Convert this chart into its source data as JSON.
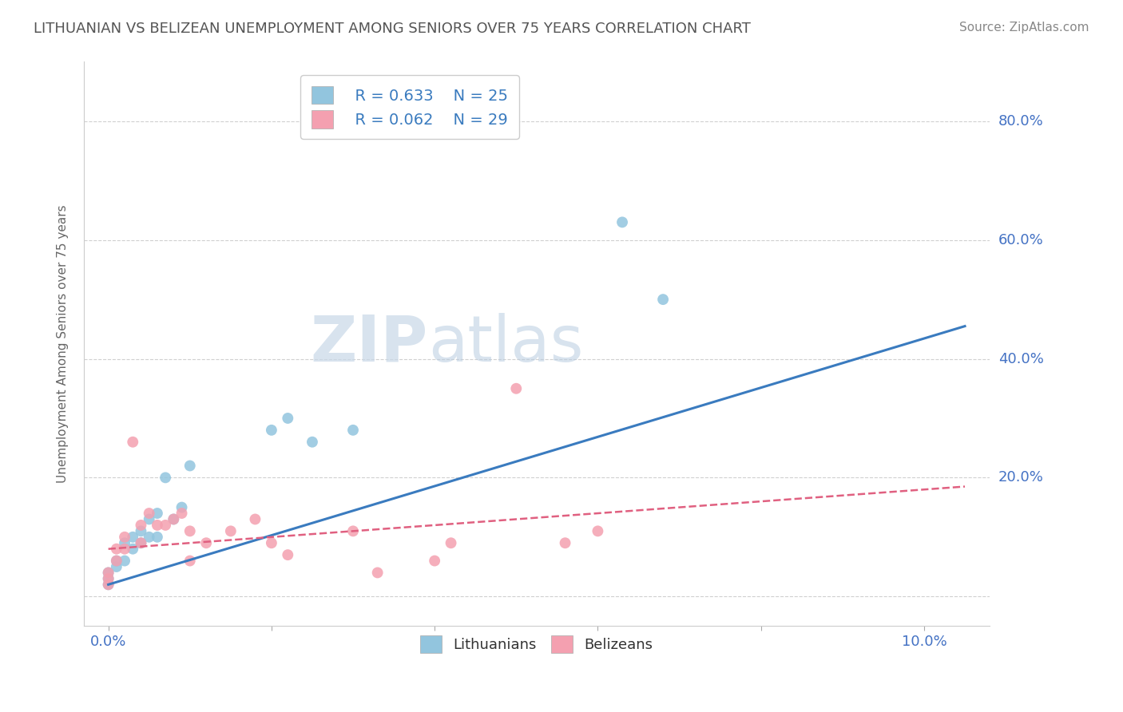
{
  "title": "LITHUANIAN VS BELIZEAN UNEMPLOYMENT AMONG SENIORS OVER 75 YEARS CORRELATION CHART",
  "source": "Source: ZipAtlas.com",
  "ylabel": "Unemployment Among Seniors over 75 years",
  "x_ticks": [
    0.0,
    0.02,
    0.04,
    0.06,
    0.08,
    0.1
  ],
  "x_tick_labels": [
    "0.0%",
    "",
    "",
    "",
    "",
    "10.0%"
  ],
  "y_ticks": [
    0.0,
    0.2,
    0.4,
    0.6,
    0.8
  ],
  "y_tick_labels": [
    "",
    "20.0%",
    "40.0%",
    "60.0%",
    "80.0%"
  ],
  "xlim": [
    -0.003,
    0.108
  ],
  "ylim": [
    -0.05,
    0.9
  ],
  "legend_r1": "R = 0.633",
  "legend_n1": "N = 25",
  "legend_r2": "R = 0.062",
  "legend_n2": "N = 29",
  "blue_color": "#92c5de",
  "pink_color": "#f4a0b0",
  "blue_line_color": "#3a7bbf",
  "pink_line_color": "#e06080",
  "watermark_zip": "ZIP",
  "watermark_atlas": "atlas",
  "background_color": "#ffffff",
  "grid_color": "#d0d0d0",
  "title_color": "#555555",
  "axis_tick_color": "#4472c4",
  "lit_x": [
    0.0,
    0.0,
    0.0,
    0.001,
    0.001,
    0.002,
    0.002,
    0.003,
    0.003,
    0.004,
    0.004,
    0.005,
    0.005,
    0.006,
    0.006,
    0.007,
    0.008,
    0.009,
    0.01,
    0.02,
    0.022,
    0.025,
    0.03,
    0.063,
    0.068
  ],
  "lit_y": [
    0.02,
    0.03,
    0.04,
    0.05,
    0.06,
    0.06,
    0.09,
    0.08,
    0.1,
    0.09,
    0.11,
    0.1,
    0.13,
    0.1,
    0.14,
    0.2,
    0.13,
    0.15,
    0.22,
    0.28,
    0.3,
    0.26,
    0.28,
    0.63,
    0.5
  ],
  "bel_x": [
    0.0,
    0.0,
    0.0,
    0.001,
    0.001,
    0.002,
    0.002,
    0.003,
    0.004,
    0.004,
    0.005,
    0.006,
    0.007,
    0.008,
    0.009,
    0.01,
    0.01,
    0.012,
    0.015,
    0.018,
    0.02,
    0.022,
    0.03,
    0.033,
    0.04,
    0.042,
    0.05,
    0.056,
    0.06
  ],
  "bel_y": [
    0.02,
    0.03,
    0.04,
    0.06,
    0.08,
    0.08,
    0.1,
    0.26,
    0.09,
    0.12,
    0.14,
    0.12,
    0.12,
    0.13,
    0.14,
    0.06,
    0.11,
    0.09,
    0.11,
    0.13,
    0.09,
    0.07,
    0.11,
    0.04,
    0.06,
    0.09,
    0.35,
    0.09,
    0.11
  ],
  "lit_line_x": [
    0.0,
    0.105
  ],
  "lit_line_y": [
    0.02,
    0.455
  ],
  "bel_line_x": [
    0.0,
    0.105
  ],
  "bel_line_y": [
    0.08,
    0.185
  ]
}
